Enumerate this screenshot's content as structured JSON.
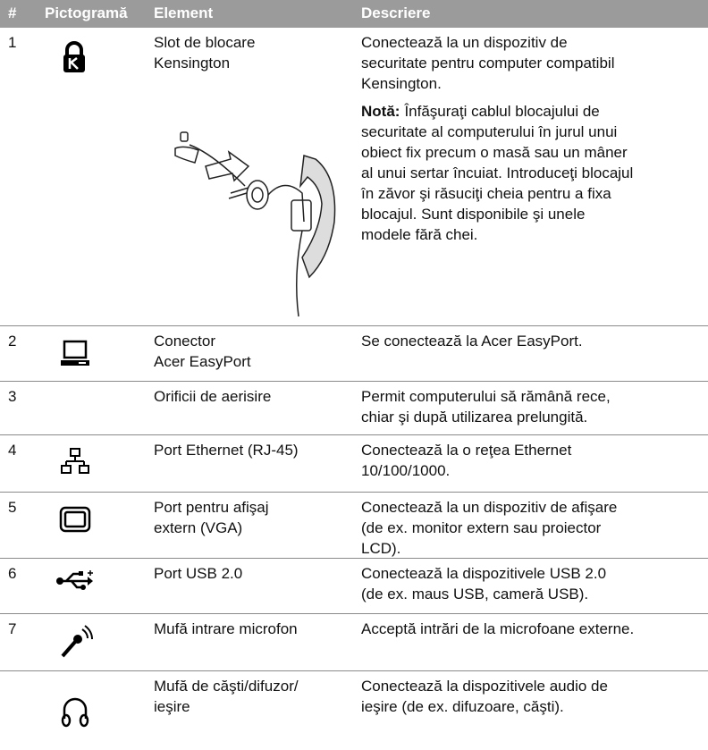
{
  "table": {
    "header": [
      "#",
      "Pictogramă",
      "Element",
      "Descriere"
    ],
    "rows": [
      {
        "number": "1",
        "element": [
          "Slot de blocare",
          "Kensington"
        ],
        "description": [
          "Conectează la un dispozitiv de",
          "securitate pentru computer compatibil",
          "Kensington."
        ],
        "note_label": "Notă:",
        "note": [
          "Înfăşuraţi cablul blocajului de",
          "securitate al computerului în jurul unui",
          "obiect fix precum o masă sau un mâner",
          "al unui sertar încuiat. Introduceţi blocajul",
          "în zăvor şi răsuciţi cheia pentru a fixa",
          "blocajul. Sunt disponibile şi unele",
          "modele fără chei."
        ]
      },
      {
        "number": "2",
        "element": [
          "Conector",
          "Acer EasyPort"
        ],
        "description": [
          "Se conectează la Acer EasyPort."
        ]
      },
      {
        "number": "3",
        "element": [
          "Orificii de aerisire"
        ],
        "description": [
          "Permit computerului să rămână rece,",
          "chiar şi după utilizarea prelungită."
        ]
      },
      {
        "number": "4",
        "element": [
          "Port Ethernet (RJ-45)"
        ],
        "description": [
          "Conectează la o reţea Ethernet",
          "10/100/1000."
        ]
      },
      {
        "number": "5",
        "element": [
          "Port pentru afişaj",
          "extern (VGA)"
        ],
        "description": [
          "Conectează la un dispozitiv de afişare",
          "(de ex. monitor extern sau proiector",
          "LCD)."
        ]
      },
      {
        "number": "6",
        "element": [
          "Port USB 2.0"
        ],
        "description": [
          "Conectează la dispozitivele USB 2.0",
          "(de ex. maus USB, cameră USB)."
        ]
      },
      {
        "number": "7",
        "element": [
          "Mufă intrare microfon"
        ],
        "description": [
          "Acceptă intrări de la microfoane externe."
        ]
      },
      {
        "element": [
          "Mufă de căşti/difuzor/",
          "ieşire"
        ],
        "description": [
          "Conectează la dispozitivele audio de",
          "ieşire (de ex. difuzoare, căşti)."
        ]
      }
    ]
  }
}
